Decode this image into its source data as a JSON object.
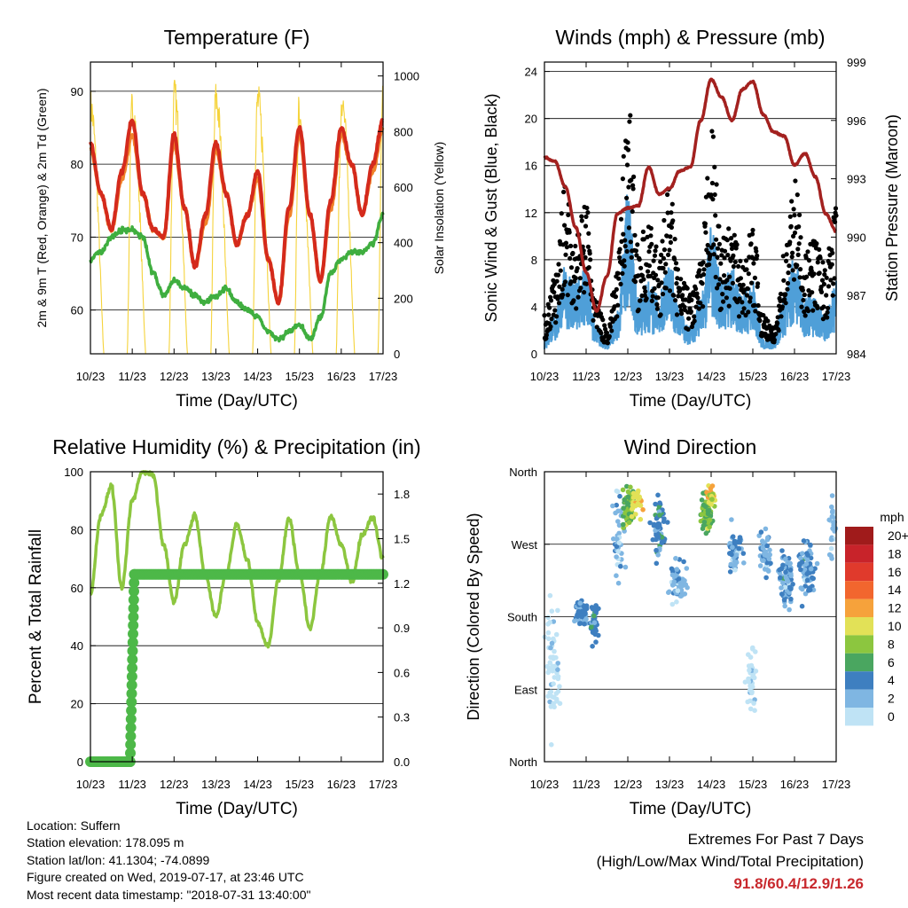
{
  "x_ticks": [
    "10/23",
    "11/23",
    "12/23",
    "13/23",
    "14/23",
    "15/23",
    "16/23",
    "17/23"
  ],
  "panels": [
    {
      "title": "Temperature (F)",
      "xlabel": "Time (Day/UTC)",
      "ylabel_left": "2m & 9m T (Red, Orange) & 2m Td (Green)",
      "ylabel_right": "Solar Insolation (Yellow)"
    },
    {
      "title": "Winds (mph) & Pressure (mb)",
      "xlabel": "Time (Day/UTC)",
      "ylabel_left": "Sonic Wind & Gust (Blue, Black)",
      "ylabel_right": "Station Pressure (Maroon)"
    },
    {
      "title": "Relative Humidity (%) & Precipitation (in)",
      "xlabel": "Time (Day/UTC)",
      "ylabel_left": "Percent & Total Rainfall",
      "ylabel_right": ""
    },
    {
      "title": "Wind Direction",
      "xlabel": "Time (Day/UTC)",
      "ylabel_left": "Direction (Colored By Speed)",
      "ylabel_right": ""
    }
  ],
  "chart_data": [
    {
      "type": "line",
      "title": "Temperature (F)",
      "xlabel": "Time (Day/UTC)",
      "ylabel": "2m & 9m T (Red, Orange) & 2m Td (Green)",
      "y2label": "Solar Insolation (Yellow)",
      "x": [
        0,
        0.25,
        0.5,
        0.75,
        1,
        1.25,
        1.5,
        1.75,
        2,
        2.25,
        2.5,
        2.75,
        3,
        3.25,
        3.5,
        3.75,
        4,
        4.25,
        4.5,
        4.75,
        5,
        5.25,
        5.5,
        5.75,
        6,
        6.25,
        6.5,
        6.75,
        7
      ],
      "x_unit": "days since 10/23",
      "ylim": [
        54,
        94
      ],
      "yticks": [
        60,
        70,
        80,
        90
      ],
      "y2lim": [
        0,
        1050
      ],
      "y2ticks": [
        0,
        200,
        400,
        600,
        800,
        1000
      ],
      "series": [
        {
          "name": "2m T",
          "color": "#d42a1c",
          "values": [
            83,
            76,
            71,
            79,
            86,
            76,
            71,
            70,
            84,
            74,
            66,
            73,
            83,
            76,
            69,
            73,
            79,
            67,
            61,
            74,
            85,
            73,
            64,
            75,
            85,
            80,
            73,
            80,
            86
          ]
        },
        {
          "name": "9m T",
          "color": "#f0822a",
          "values": [
            82,
            76,
            71,
            78,
            84,
            76,
            71,
            70,
            83,
            74,
            66,
            72,
            82,
            76,
            69,
            73,
            78,
            67,
            61,
            73,
            84,
            73,
            64,
            74,
            84,
            80,
            73,
            79,
            85
          ]
        },
        {
          "name": "2m Td",
          "color": "#3fae3f",
          "values": [
            67,
            68,
            70,
            71,
            71,
            70,
            65,
            62,
            64,
            63,
            62,
            61,
            62,
            63,
            61,
            60,
            59,
            57,
            56,
            57,
            58,
            56,
            59,
            65,
            67,
            68,
            68,
            69,
            73
          ]
        },
        {
          "name": "Solar Insolation",
          "color": "#f5d33b",
          "axis": "right",
          "values": [
            960,
            400,
            0,
            0,
            960,
            500,
            0,
            0,
            1000,
            380,
            0,
            0,
            990,
            400,
            0,
            0,
            980,
            380,
            0,
            0,
            900,
            380,
            0,
            0,
            1000,
            380,
            0,
            0,
            1020
          ]
        }
      ]
    },
    {
      "type": "line",
      "title": "Winds (mph) & Pressure (mb)",
      "xlabel": "Time (Day/UTC)",
      "ylabel": "Sonic Wind & Gust (Blue, Black)",
      "y2label": "Station Pressure (Maroon)",
      "x": [
        0,
        0.25,
        0.5,
        0.75,
        1,
        1.25,
        1.5,
        1.75,
        2,
        2.25,
        2.5,
        2.75,
        3,
        3.25,
        3.5,
        3.75,
        4,
        4.25,
        4.5,
        4.75,
        5,
        5.25,
        5.5,
        5.75,
        6,
        6.25,
        6.5,
        6.75,
        7
      ],
      "x_unit": "days since 10/23",
      "ylim": [
        0,
        24.8
      ],
      "yticks": [
        0,
        4,
        8,
        12,
        16,
        20,
        24
      ],
      "y2lim": [
        984,
        999
      ],
      "y2ticks": [
        984,
        987,
        990,
        993,
        996,
        999
      ],
      "series": [
        {
          "name": "Sonic Wind",
          "color": "#4f9fd8",
          "values": [
            1,
            3,
            6,
            5,
            6,
            2,
            1,
            3,
            11,
            4,
            5,
            4,
            7,
            3,
            2,
            4,
            9,
            5,
            6,
            4,
            5,
            1,
            1,
            4,
            7,
            4,
            4,
            3,
            5
          ]
        },
        {
          "name": "Gust",
          "color": "#000000",
          "values": [
            3,
            6,
            13,
            9,
            12,
            4,
            2,
            7,
            21,
            9,
            10,
            8,
            13,
            6,
            5,
            7,
            18,
            9,
            10,
            7,
            10,
            3,
            2,
            8,
            14,
            8,
            9,
            7,
            12
          ]
        },
        {
          "name": "Station Pressure",
          "color": "#a3211f",
          "axis": "right",
          "values": [
            994.1,
            993.9,
            992.6,
            990.5,
            988.2,
            986.2,
            988.0,
            991.2,
            991.5,
            991.6,
            993.6,
            992.2,
            992.5,
            993.4,
            993.6,
            996.0,
            998.1,
            997.2,
            996.0,
            997.6,
            998.0,
            996.3,
            995.4,
            995.2,
            993.7,
            994.3,
            993.1,
            991.2,
            990.3
          ]
        }
      ]
    },
    {
      "type": "line",
      "title": "Relative Humidity (%) & Precipitation (in)",
      "xlabel": "Time (Day/UTC)",
      "ylabel": "Percent & Total Rainfall",
      "x": [
        0,
        0.25,
        0.5,
        0.75,
        1,
        1.25,
        1.5,
        1.75,
        2,
        2.25,
        2.5,
        2.75,
        3,
        3.25,
        3.5,
        3.75,
        4,
        4.25,
        4.5,
        4.75,
        5,
        5.25,
        5.5,
        5.75,
        6,
        6.25,
        6.5,
        6.75,
        7
      ],
      "x_unit": "days since 10/23",
      "ylim": [
        0,
        100
      ],
      "yticks": [
        0,
        20,
        40,
        60,
        80,
        100
      ],
      "y2lim": [
        0,
        1.95
      ],
      "y2ticks": [
        0.0,
        0.3,
        0.6,
        0.9,
        1.2,
        1.5,
        1.8
      ],
      "series": [
        {
          "name": "Relative Humidity",
          "color": "#8cc63f",
          "values": [
            58,
            85,
            95,
            60,
            90,
            100,
            99,
            75,
            55,
            75,
            85,
            64,
            50,
            65,
            82,
            70,
            48,
            40,
            63,
            84,
            65,
            46,
            65,
            85,
            75,
            62,
            78,
            84,
            70
          ]
        },
        {
          "name": "Total Rainfall",
          "color": "#4db848",
          "axis": "right",
          "values": [
            0,
            0,
            0,
            0,
            0,
            1.26,
            1.26,
            1.26,
            1.26,
            1.26,
            1.26,
            1.26,
            1.26,
            1.26,
            1.26,
            1.26,
            1.26,
            1.26,
            1.26,
            1.26,
            1.26,
            1.26,
            1.26,
            1.26,
            1.26,
            1.26,
            1.26,
            1.26,
            1.26
          ]
        }
      ],
      "rain_ramp_days": [
        0.95,
        1.05
      ],
      "rain_ramp_values": [
        0.0,
        0.3,
        0.6,
        0.9,
        1.2,
        1.26
      ]
    },
    {
      "type": "scatter",
      "title": "Wind Direction",
      "xlabel": "Time (Day/UTC)",
      "ylabel": "Direction (Colored By Speed)",
      "ylim": [
        0,
        360
      ],
      "y_tick_labels": [
        "North",
        "East",
        "South",
        "West",
        "North"
      ],
      "y_tick_values": [
        0,
        90,
        180,
        270,
        360
      ],
      "clusters": [
        {
          "day": 0.2,
          "dir": 120,
          "spread_d": 0.25,
          "spread_a": 110,
          "speed": 1,
          "n": 60
        },
        {
          "day": 0.9,
          "dir": 185,
          "spread_d": 0.25,
          "spread_a": 20,
          "speed": 4,
          "n": 60
        },
        {
          "day": 1.2,
          "dir": 170,
          "spread_d": 0.15,
          "spread_a": 35,
          "speed": 5,
          "n": 40
        },
        {
          "day": 1.8,
          "dir": 280,
          "spread_d": 0.25,
          "spread_a": 90,
          "speed": 3,
          "n": 40
        },
        {
          "day": 2.0,
          "dir": 315,
          "spread_d": 0.18,
          "spread_a": 35,
          "speed": 8,
          "n": 80
        },
        {
          "day": 2.2,
          "dir": 320,
          "spread_d": 0.2,
          "spread_a": 25,
          "speed": 11,
          "n": 30
        },
        {
          "day": 2.75,
          "dir": 290,
          "spread_d": 0.25,
          "spread_a": 50,
          "speed": 5,
          "n": 60
        },
        {
          "day": 3.2,
          "dir": 220,
          "spread_d": 0.25,
          "spread_a": 45,
          "speed": 3,
          "n": 60
        },
        {
          "day": 3.9,
          "dir": 310,
          "spread_d": 0.2,
          "spread_a": 35,
          "speed": 8,
          "n": 80
        },
        {
          "day": 4.0,
          "dir": 330,
          "spread_d": 0.15,
          "spread_a": 20,
          "speed": 11,
          "n": 25
        },
        {
          "day": 4.6,
          "dir": 260,
          "spread_d": 0.25,
          "spread_a": 45,
          "speed": 4,
          "n": 50
        },
        {
          "day": 4.95,
          "dir": 100,
          "spread_d": 0.15,
          "spread_a": 70,
          "speed": 1,
          "n": 40
        },
        {
          "day": 5.3,
          "dir": 260,
          "spread_d": 0.22,
          "spread_a": 50,
          "speed": 4,
          "n": 50
        },
        {
          "day": 5.8,
          "dir": 225,
          "spread_d": 0.25,
          "spread_a": 45,
          "speed": 4,
          "n": 70
        },
        {
          "day": 6.3,
          "dir": 240,
          "spread_d": 0.3,
          "spread_a": 55,
          "speed": 4,
          "n": 70
        },
        {
          "day": 6.9,
          "dir": 290,
          "spread_d": 0.1,
          "spread_a": 60,
          "speed": 3,
          "n": 25
        }
      ],
      "colorbar": {
        "title": "mph",
        "labels": [
          "20+",
          "18",
          "16",
          "14",
          "12",
          "10",
          "8",
          "6",
          "4",
          "2",
          "0"
        ],
        "colors": [
          "#a01b1b",
          "#c8232a",
          "#e03a2c",
          "#f2662e",
          "#f6a23b",
          "#e2e157",
          "#8cc63f",
          "#4aa660",
          "#3e7fc0",
          "#7fb6e2",
          "#bfe3f5"
        ]
      }
    }
  ],
  "info": {
    "location": "Location: Suffern",
    "elevation": "Station elevation: 178.095 m",
    "latlon": "Station lat/lon: 41.1304; -74.0899",
    "created": "Figure created on Wed, 2019-07-17, at 23:46 UTC",
    "latest": "Most recent data timestamp: \"2018-07-31 13:40:00\""
  },
  "extremes": {
    "title": "Extremes For Past 7 Days",
    "subtitle": "(High/Low/Max Wind/Total Precipitation)",
    "values": "91.8/60.4/12.9/1.26"
  }
}
